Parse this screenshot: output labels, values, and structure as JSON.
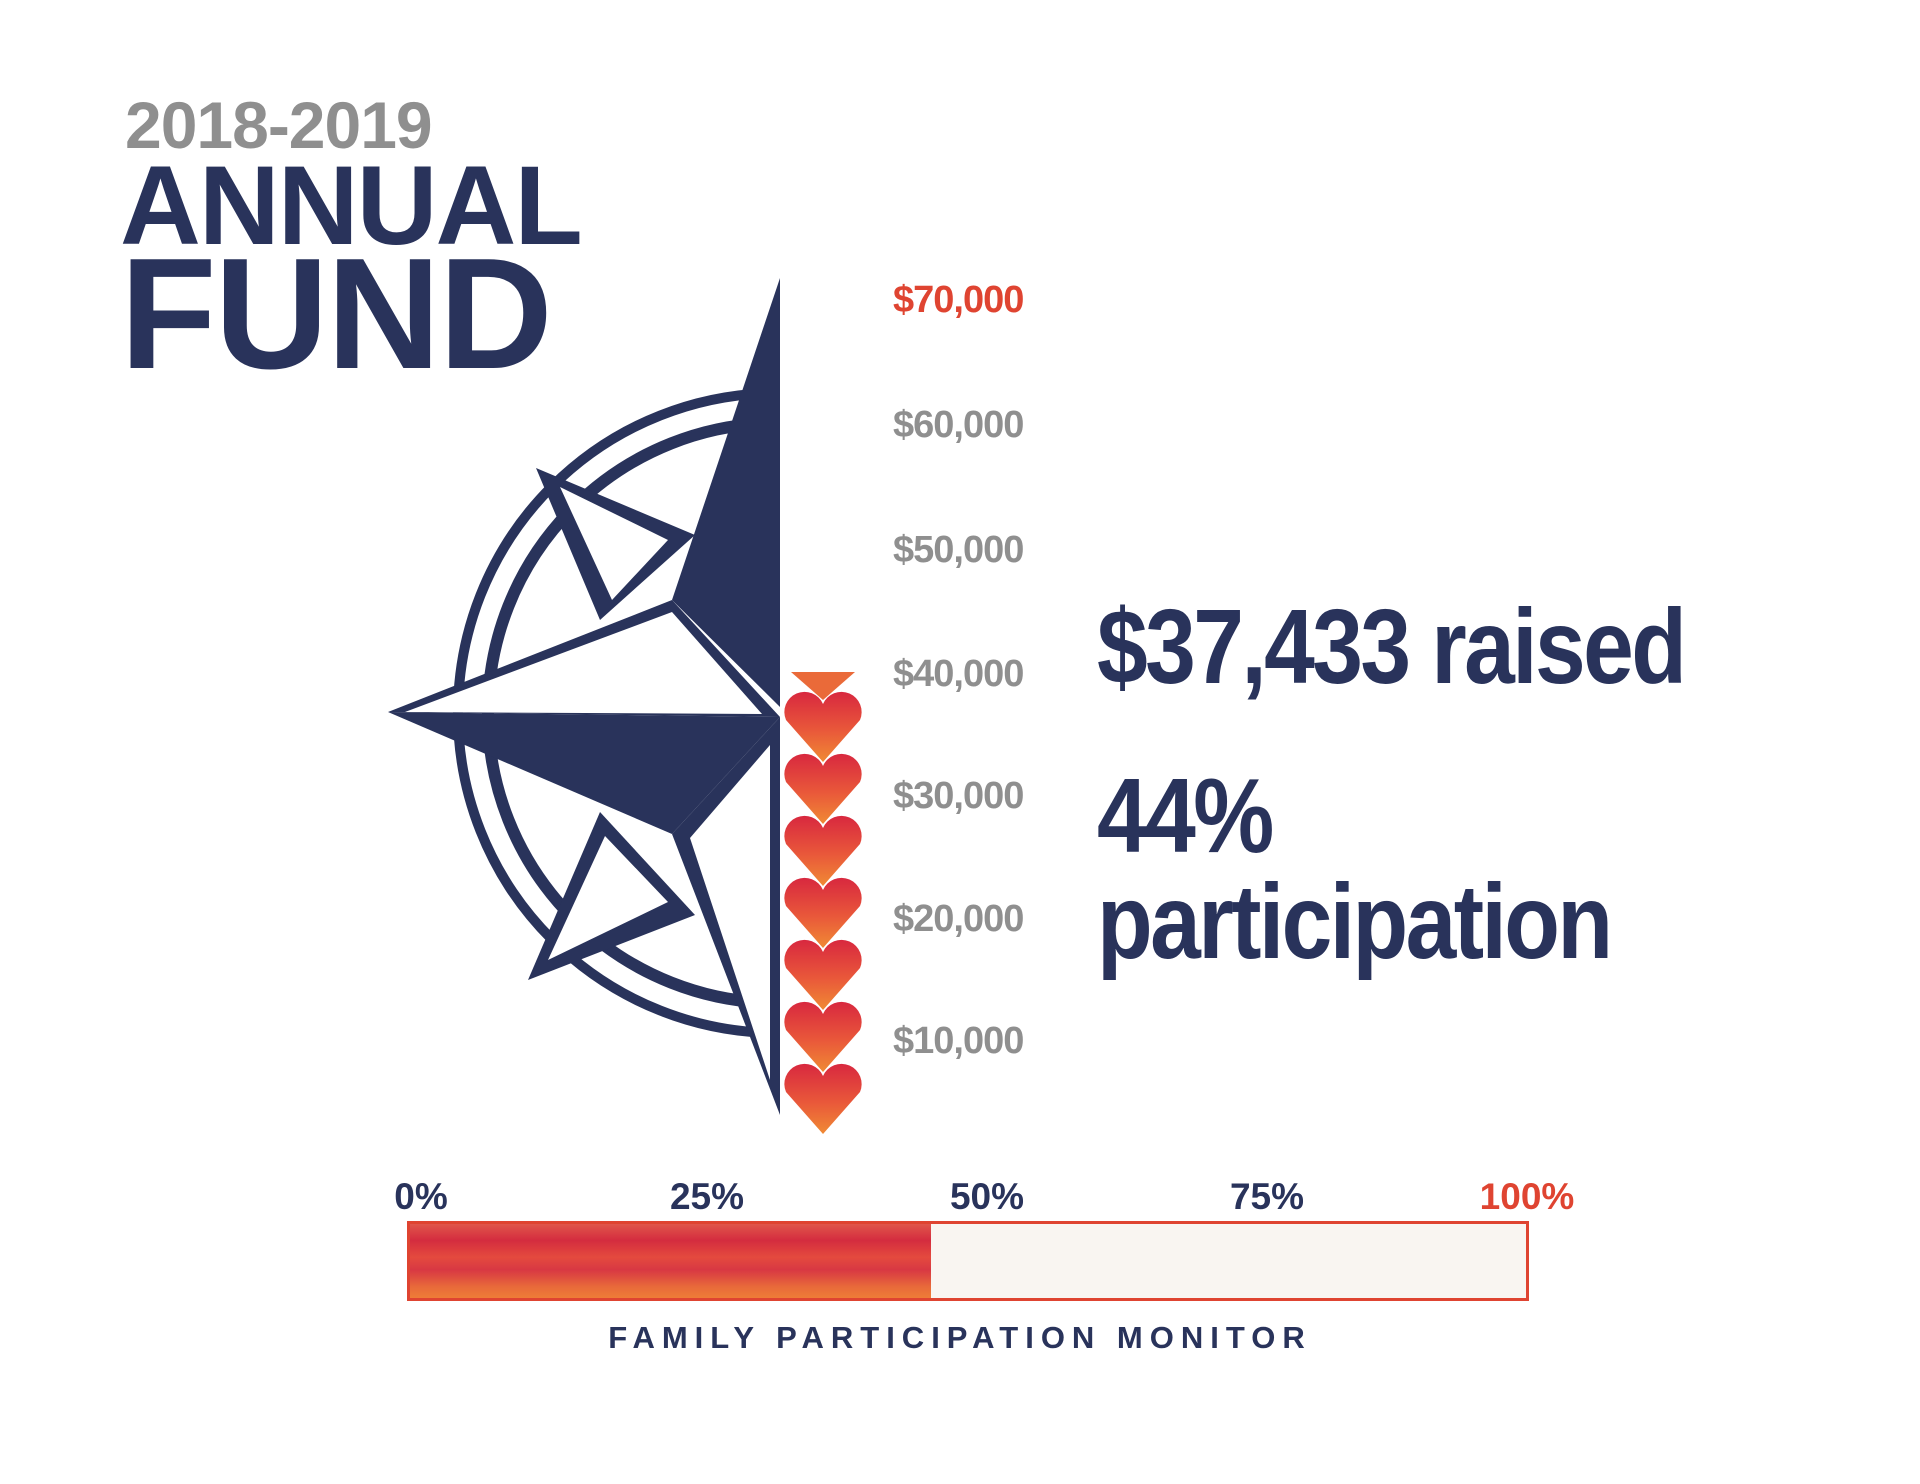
{
  "header": {
    "year": "2018-2019",
    "title_line1": "ANNUAL",
    "title_line2": "FUND"
  },
  "thermometer": {
    "labels": [
      "$70,000",
      "$60,000",
      "$50,000",
      "$40,000",
      "$30,000",
      "$20,000",
      "$10,000"
    ],
    "goal_color": "#df4431",
    "raised_amount": 37433,
    "goal_amount": 70000,
    "heart_icon": "heart-icon"
  },
  "stats": {
    "raised": "$37,433 raised",
    "participation": "44% participation"
  },
  "monitor": {
    "labels": [
      "0%",
      "25%",
      "50%",
      "75%",
      "100%"
    ],
    "participation_value": 44,
    "caption": "FAMILY PARTICIPATION MONITOR"
  },
  "colors": {
    "navy": "#29335b",
    "red": "#df4431",
    "gray": "#8f8f8f"
  }
}
